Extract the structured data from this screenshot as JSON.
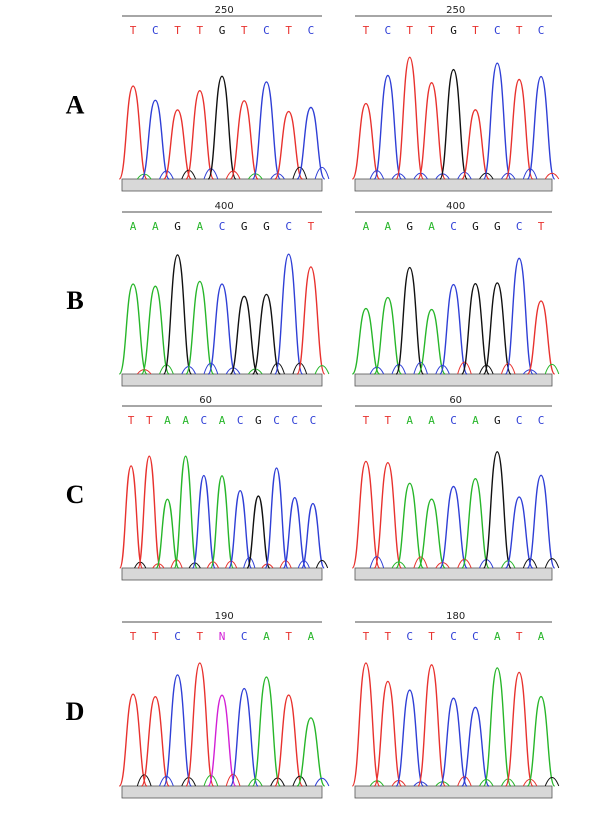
{
  "base_colors": {
    "T": "#e8322e",
    "C": "#2f3fd6",
    "A": "#27b62a",
    "G": "#111111",
    "N": "#d21fd6"
  },
  "panels": [
    {
      "label": "A",
      "left": {
        "position": "250",
        "bases": [
          "T",
          "C",
          "T",
          "T",
          "G",
          "T",
          "C",
          "T",
          "C"
        ]
      },
      "right": {
        "position": "250",
        "bases": [
          "T",
          "C",
          "T",
          "T",
          "G",
          "T",
          "C",
          "T",
          "C"
        ]
      }
    },
    {
      "label": "B",
      "left": {
        "position": "400",
        "bases": [
          "A",
          "A",
          "G",
          "A",
          "C",
          "G",
          "G",
          "C",
          "T"
        ]
      },
      "right": {
        "position": "400",
        "bases": [
          "A",
          "A",
          "G",
          "A",
          "C",
          "G",
          "G",
          "C",
          "T"
        ]
      }
    },
    {
      "label": "C",
      "left": {
        "position": "60",
        "bases": [
          "T",
          "T",
          "A",
          "A",
          "C",
          "A",
          "C",
          "G",
          "C",
          "C",
          "C"
        ]
      },
      "right": {
        "position": "60",
        "bases": [
          "T",
          "T",
          "A",
          "A",
          "C",
          "A",
          "G",
          "C",
          "C"
        ]
      }
    },
    {
      "label": "D",
      "left": {
        "position": "190",
        "bases": [
          "T",
          "T",
          "C",
          "T",
          "N",
          "C",
          "A",
          "T",
          "A"
        ]
      },
      "right": {
        "position": "180",
        "bases": [
          "T",
          "T",
          "C",
          "T",
          "C",
          "C",
          "A",
          "T",
          "A"
        ]
      }
    }
  ]
}
